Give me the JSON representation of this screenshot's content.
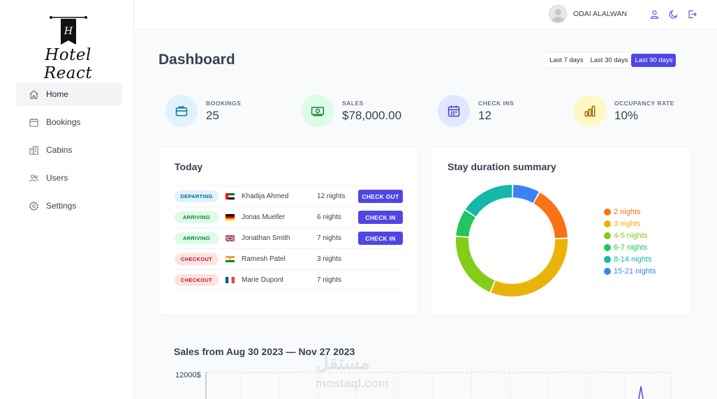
{
  "app": {
    "logo_text": "Hotel React",
    "logo_monogram": "H"
  },
  "sidebar": {
    "items": [
      {
        "label": "Home",
        "icon": "home-icon",
        "active": true
      },
      {
        "label": "Bookings",
        "icon": "calendar-icon",
        "active": false
      },
      {
        "label": "Cabins",
        "icon": "cabins-icon",
        "active": false
      },
      {
        "label": "Users",
        "icon": "users-icon",
        "active": false
      },
      {
        "label": "Settings",
        "icon": "gear-icon",
        "active": false
      }
    ]
  },
  "header": {
    "username": "ODAI ALALWAN",
    "icons": [
      "user-icon",
      "moon-icon",
      "logout-icon"
    ]
  },
  "main": {
    "title": "Dashboard",
    "filters": [
      {
        "label": "Last 7 days",
        "active": false
      },
      {
        "label": "Last 30 days",
        "active": false
      },
      {
        "label": "Last 90 days",
        "active": true
      }
    ],
    "stats": [
      {
        "label": "BOOKINGS",
        "value": "25",
        "icon": "briefcase-icon",
        "bg": "#e0f2fe",
        "color": "#0369a1"
      },
      {
        "label": "SALES",
        "value": "$78,000.00",
        "icon": "banknotes-icon",
        "bg": "#dcfce7",
        "color": "#15803d"
      },
      {
        "label": "CHECK INS",
        "value": "12",
        "icon": "calendar-days-icon",
        "bg": "#e0e7ff",
        "color": "#4338ca"
      },
      {
        "label": "OCCUPANCY RATE",
        "value": "10%",
        "icon": "chart-bar-icon",
        "bg": "#fef9c3",
        "color": "#a16207"
      }
    ],
    "today": {
      "title": "Today",
      "rows": [
        {
          "status": "DEPARTING",
          "status_bg": "#e0f2fe",
          "status_color": "#0369a1",
          "flag": "ae",
          "guest": "Khadija Ahmed",
          "nights": "12 nights",
          "action": "CHECK OUT"
        },
        {
          "status": "ARRIVING",
          "status_bg": "#dcfce7",
          "status_color": "#15803d",
          "flag": "de",
          "guest": "Jonas Mueller",
          "nights": "6 nights",
          "action": "CHECK IN"
        },
        {
          "status": "ARRIVING",
          "status_bg": "#dcfce7",
          "status_color": "#15803d",
          "flag": "gb",
          "guest": "Jonathan Smith",
          "nights": "7 nights",
          "action": "CHECK IN"
        },
        {
          "status": "CHECKOUT",
          "status_bg": "#fee2e2",
          "status_color": "#b91c1c",
          "flag": "in",
          "guest": "Ramesh Patel",
          "nights": "3 nights",
          "action": ""
        },
        {
          "status": "CHECKOUT",
          "status_bg": "#fee2e2",
          "status_color": "#b91c1c",
          "flag": "fr",
          "guest": "Marie Dupont",
          "nights": "7 nights",
          "action": ""
        }
      ]
    },
    "stay": {
      "title": "Stay duration summary"
    },
    "sales": {
      "title": "Sales from Aug 30 2023 — Nov 27 2023",
      "ylabel_tick": "12000$"
    },
    "watermark": {
      "line1": "مستقل",
      "line2": "mostaql.com"
    }
  },
  "chart_data": {
    "type": "pie",
    "title": "Stay duration summary",
    "donut": true,
    "legend_position": "right",
    "series": [
      {
        "name": "2 nights",
        "value": 4,
        "color": "#f97316"
      },
      {
        "name": "3 nights",
        "value": 8,
        "color": "#eab308"
      },
      {
        "name": "4-5 nights",
        "value": 5,
        "color": "#84cc16"
      },
      {
        "name": "6-7 nights",
        "value": 2,
        "color": "#22c55e"
      },
      {
        "name": "8-14 nights",
        "value": 4,
        "color": "#14b8a6"
      },
      {
        "name": "15-21 nights",
        "value": 2,
        "color": "#3b82f6"
      }
    ]
  }
}
